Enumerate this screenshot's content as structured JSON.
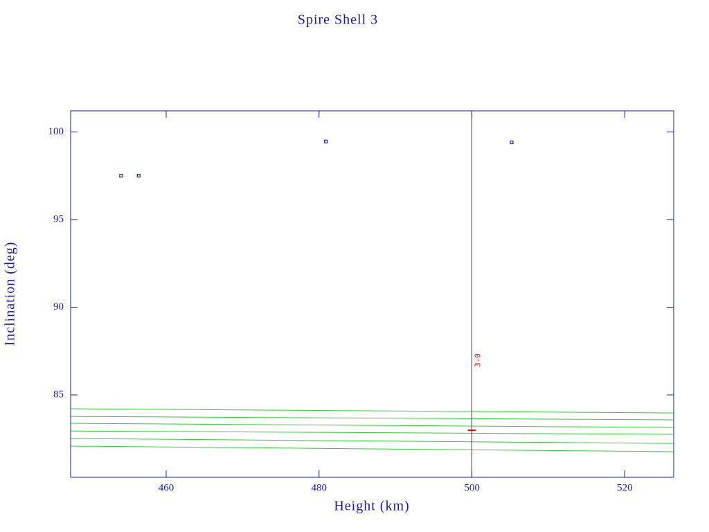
{
  "chart_data": {
    "type": "scatter",
    "title": "Spire Shell 3",
    "xlabel": "Height (km)",
    "ylabel": "Inclination (deg)",
    "xlim": [
      447.5,
      526.4
    ],
    "ylim": [
      80.3,
      101.2
    ],
    "xticks": [
      460,
      480,
      500,
      520
    ],
    "yticks": [
      85,
      90,
      95,
      100
    ],
    "axis_color": "#1a1aa0",
    "series": [
      {
        "mode": "markers",
        "marker": "square",
        "color": "#1a1aa0",
        "x": [
          454.1,
          456.4,
          480.9,
          505.2
        ],
        "values": [
          97.5,
          97.5,
          99.45,
          99.4
        ]
      },
      {
        "mode": "markers",
        "marker": "dash",
        "color": "#cc0000",
        "x": [
          500
        ],
        "values": [
          82.98
        ]
      },
      {
        "mode": "line",
        "color": "#33cc33",
        "x": [
          447.5,
          526.4
        ],
        "values": [
          84.21,
          83.97
        ]
      },
      {
        "mode": "line",
        "color": "#33cc33",
        "x": [
          447.5,
          526.4
        ],
        "values": [
          83.77,
          83.58
        ]
      },
      {
        "mode": "line",
        "color": "#33cc33",
        "x": [
          447.5,
          526.4
        ],
        "values": [
          83.38,
          83.14
        ]
      },
      {
        "mode": "line",
        "color": "#33cc33",
        "x": [
          447.5,
          526.4
        ],
        "values": [
          82.94,
          82.75
        ]
      },
      {
        "mode": "line",
        "color": "#33cc33",
        "x": [
          447.5,
          526.4
        ],
        "values": [
          82.51,
          82.23
        ]
      },
      {
        "mode": "line",
        "color": "#33cc33",
        "x": [
          447.5,
          526.4
        ],
        "values": [
          82.08,
          81.76
        ]
      }
    ],
    "vline": {
      "x": 500,
      "label": "3-0",
      "color": "#cc0000"
    }
  }
}
